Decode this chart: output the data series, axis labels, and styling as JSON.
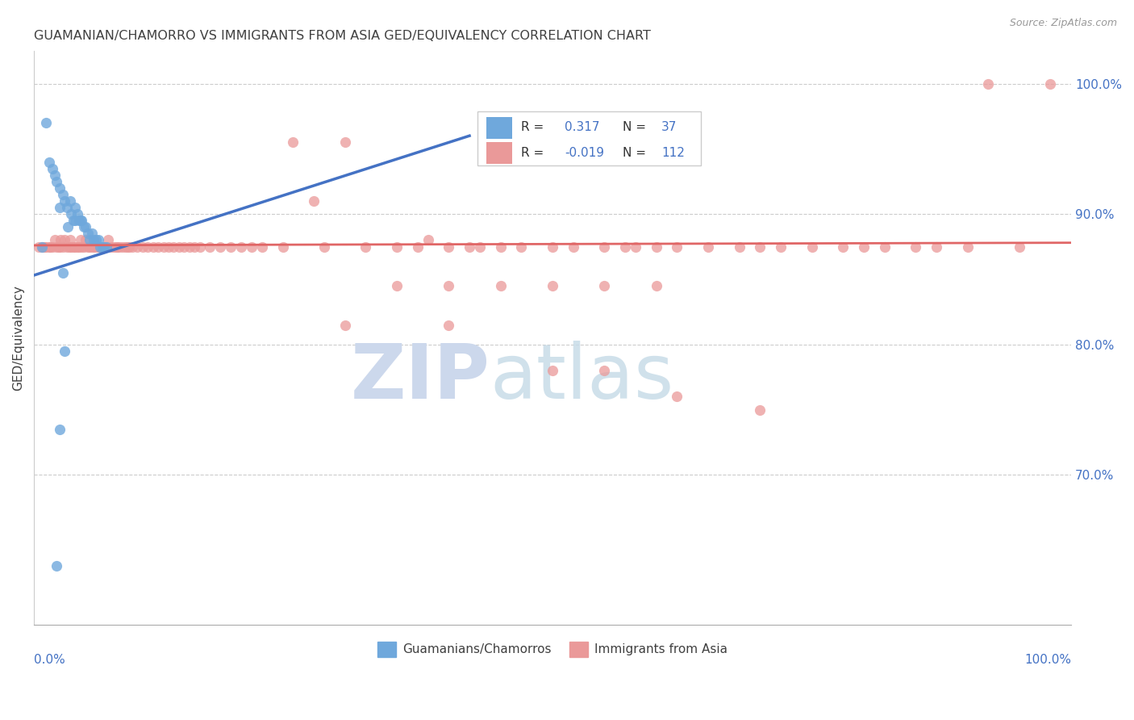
{
  "title": "GUAMANIAN/CHAMORRO VS IMMIGRANTS FROM ASIA GED/EQUIVALENCY CORRELATION CHART",
  "source": "Source: ZipAtlas.com",
  "ylabel": "GED/Equivalency",
  "xlim": [
    0.0,
    1.0
  ],
  "ylim": [
    0.585,
    1.025
  ],
  "blue_color": "#6fa8dc",
  "pink_color": "#ea9999",
  "blue_line_color": "#4472c4",
  "pink_line_color": "#e06666",
  "title_color": "#404040",
  "axis_label_color": "#4472c4",
  "blue_scatter_x": [
    0.008,
    0.012,
    0.015,
    0.018,
    0.02,
    0.022,
    0.025,
    0.025,
    0.028,
    0.03,
    0.032,
    0.033,
    0.035,
    0.036,
    0.038,
    0.04,
    0.04,
    0.042,
    0.044,
    0.045,
    0.046,
    0.048,
    0.05,
    0.052,
    0.054,
    0.056,
    0.058,
    0.06,
    0.062,
    0.064,
    0.066,
    0.068,
    0.07,
    0.025,
    0.03,
    0.028,
    0.022
  ],
  "blue_scatter_y": [
    0.875,
    0.97,
    0.94,
    0.935,
    0.93,
    0.925,
    0.92,
    0.905,
    0.915,
    0.91,
    0.905,
    0.89,
    0.91,
    0.9,
    0.895,
    0.905,
    0.895,
    0.9,
    0.895,
    0.895,
    0.895,
    0.89,
    0.89,
    0.885,
    0.88,
    0.885,
    0.88,
    0.88,
    0.88,
    0.875,
    0.875,
    0.875,
    0.875,
    0.735,
    0.795,
    0.855,
    0.63
  ],
  "pink_scatter_x": [
    0.005,
    0.008,
    0.01,
    0.012,
    0.015,
    0.016,
    0.018,
    0.02,
    0.022,
    0.024,
    0.025,
    0.026,
    0.028,
    0.03,
    0.032,
    0.034,
    0.035,
    0.036,
    0.038,
    0.04,
    0.042,
    0.044,
    0.045,
    0.046,
    0.048,
    0.05,
    0.052,
    0.054,
    0.056,
    0.058,
    0.06,
    0.062,
    0.064,
    0.066,
    0.068,
    0.07,
    0.072,
    0.075,
    0.078,
    0.08,
    0.082,
    0.085,
    0.088,
    0.09,
    0.092,
    0.095,
    0.1,
    0.105,
    0.11,
    0.115,
    0.12,
    0.125,
    0.13,
    0.135,
    0.14,
    0.145,
    0.15,
    0.155,
    0.16,
    0.17,
    0.18,
    0.19,
    0.2,
    0.21,
    0.22,
    0.24,
    0.25,
    0.27,
    0.28,
    0.3,
    0.32,
    0.35,
    0.37,
    0.38,
    0.4,
    0.42,
    0.43,
    0.45,
    0.47,
    0.5,
    0.52,
    0.55,
    0.57,
    0.58,
    0.6,
    0.62,
    0.65,
    0.68,
    0.7,
    0.72,
    0.75,
    0.78,
    0.8,
    0.82,
    0.85,
    0.87,
    0.9,
    0.92,
    0.95,
    0.98,
    0.35,
    0.4,
    0.45,
    0.5,
    0.55,
    0.6,
    0.3,
    0.4,
    0.5,
    0.55,
    0.62,
    0.7
  ],
  "pink_scatter_y": [
    0.875,
    0.875,
    0.875,
    0.875,
    0.875,
    0.875,
    0.875,
    0.88,
    0.875,
    0.875,
    0.875,
    0.88,
    0.875,
    0.88,
    0.875,
    0.875,
    0.88,
    0.875,
    0.875,
    0.875,
    0.875,
    0.875,
    0.88,
    0.875,
    0.875,
    0.88,
    0.875,
    0.875,
    0.875,
    0.875,
    0.875,
    0.875,
    0.875,
    0.875,
    0.875,
    0.875,
    0.88,
    0.875,
    0.875,
    0.875,
    0.875,
    0.875,
    0.875,
    0.875,
    0.875,
    0.875,
    0.875,
    0.875,
    0.875,
    0.875,
    0.875,
    0.875,
    0.875,
    0.875,
    0.875,
    0.875,
    0.875,
    0.875,
    0.875,
    0.875,
    0.875,
    0.875,
    0.875,
    0.875,
    0.875,
    0.875,
    0.955,
    0.91,
    0.875,
    0.955,
    0.875,
    0.875,
    0.875,
    0.88,
    0.875,
    0.875,
    0.875,
    0.875,
    0.875,
    0.875,
    0.875,
    0.875,
    0.875,
    0.875,
    0.875,
    0.875,
    0.875,
    0.875,
    0.875,
    0.875,
    0.875,
    0.875,
    0.875,
    0.875,
    0.875,
    0.875,
    0.875,
    1.0,
    0.875,
    1.0,
    0.845,
    0.845,
    0.845,
    0.845,
    0.845,
    0.845,
    0.815,
    0.815,
    0.78,
    0.78,
    0.76,
    0.75
  ],
  "blue_line_x0": 0.0,
  "blue_line_y0": 0.853,
  "blue_line_x1": 0.42,
  "blue_line_y1": 0.96,
  "pink_line_x0": 0.0,
  "pink_line_y0": 0.876,
  "pink_line_x1": 1.0,
  "pink_line_y1": 0.878
}
